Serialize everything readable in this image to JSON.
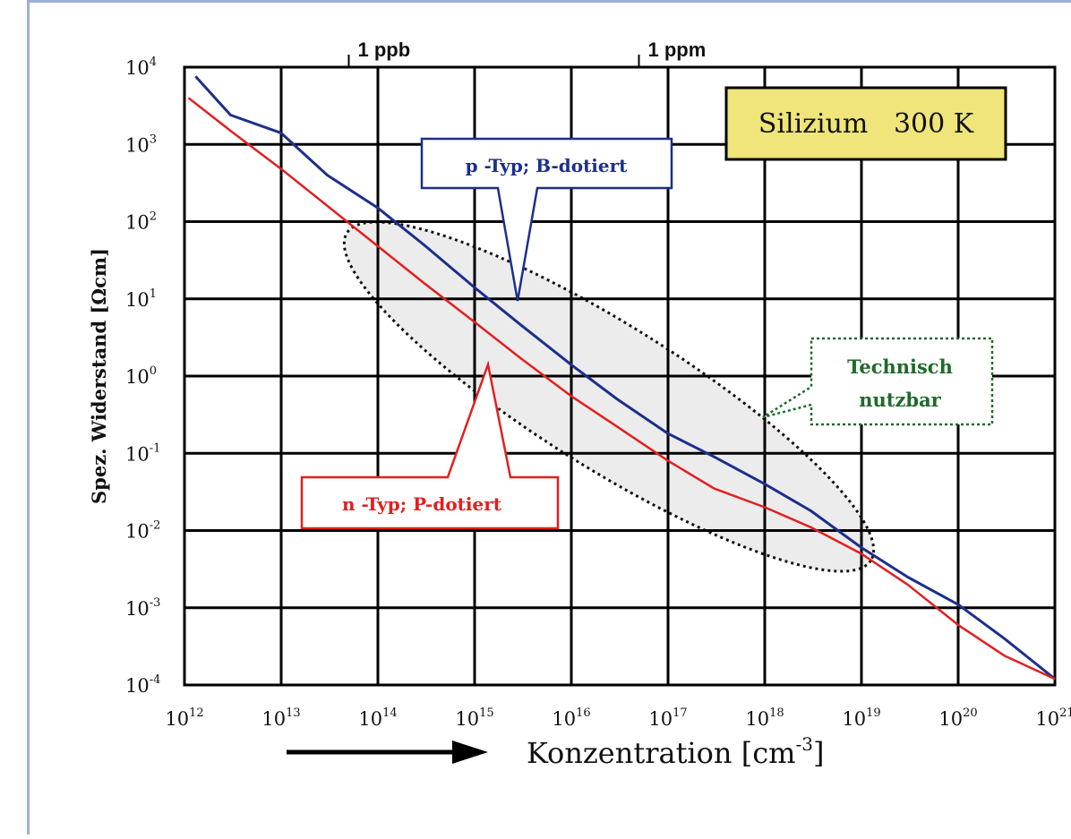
{
  "chart_data": {
    "type": "line",
    "title": "Silizium   300 K",
    "xlabel": "Konzentration [cm",
    "xlabel_exp": "-3",
    "xlabel_close": "]",
    "ylabel": "Spez. Widerstand [Ωcm]",
    "x_scale": "log",
    "y_scale": "log",
    "xlim": [
      1000000000000.0,
      1e+21
    ],
    "ylim": [
      0.0001,
      10000.0
    ],
    "grid": true,
    "x_ticks": [
      {
        "base": "10",
        "exp": "12"
      },
      {
        "base": "10",
        "exp": "13"
      },
      {
        "base": "10",
        "exp": "14"
      },
      {
        "base": "10",
        "exp": "15"
      },
      {
        "base": "10",
        "exp": "16"
      },
      {
        "base": "10",
        "exp": "17"
      },
      {
        "base": "10",
        "exp": "18"
      },
      {
        "base": "10",
        "exp": "19"
      },
      {
        "base": "10",
        "exp": "20"
      },
      {
        "base": "10",
        "exp": "21"
      }
    ],
    "y_ticks": [
      {
        "base": "10",
        "exp": "-4"
      },
      {
        "base": "10",
        "exp": "-3"
      },
      {
        "base": "10",
        "exp": "-2"
      },
      {
        "base": "10",
        "exp": "-1"
      },
      {
        "base": "10",
        "exp": "0"
      },
      {
        "base": "10",
        "exp": "1"
      },
      {
        "base": "10",
        "exp": "2"
      },
      {
        "base": "10",
        "exp": "3"
      },
      {
        "base": "10",
        "exp": "4"
      }
    ],
    "top_ticks": [
      {
        "label": "1 ppb",
        "x": 50000000000000.0
      },
      {
        "label": "1 ppm",
        "x": 5e+16
      }
    ],
    "series": [
      {
        "name": "p -Typ; B-dotiert",
        "color": "#1c2f8c",
        "points": [
          [
            1300000000000.0,
            7600
          ],
          [
            3000000000000.0,
            2400
          ],
          [
            10000000000000.0,
            1400
          ],
          [
            30000000000000.0,
            400
          ],
          [
            100000000000000.0,
            150
          ],
          [
            300000000000000.0,
            50
          ],
          [
            1000000000000000.0,
            14
          ],
          [
            3000000000000000.0,
            4.6
          ],
          [
            1e+16,
            1.4
          ],
          [
            3e+16,
            0.5
          ],
          [
            1e+17,
            0.18
          ],
          [
            3e+17,
            0.09
          ],
          [
            1e+18,
            0.04
          ],
          [
            3e+18,
            0.018
          ],
          [
            1e+19,
            0.006
          ],
          [
            3e+19,
            0.0025
          ],
          [
            1e+20,
            0.0011
          ],
          [
            3e+20,
            0.0004
          ],
          [
            1e+21,
            0.00012
          ]
        ]
      },
      {
        "name": "n -Typ; P-dotiert",
        "color": "#e21f1f",
        "points": [
          [
            1100000000000.0,
            4000
          ],
          [
            3000000000000.0,
            1500
          ],
          [
            10000000000000.0,
            480
          ],
          [
            30000000000000.0,
            160
          ],
          [
            100000000000000.0,
            48
          ],
          [
            300000000000000.0,
            16
          ],
          [
            1000000000000000.0,
            5
          ],
          [
            3000000000000000.0,
            1.7
          ],
          [
            1e+16,
            0.55
          ],
          [
            3e+16,
            0.22
          ],
          [
            1e+17,
            0.08
          ],
          [
            3e+17,
            0.035
          ],
          [
            1e+18,
            0.02
          ],
          [
            3e+18,
            0.011
          ],
          [
            1e+19,
            0.005
          ],
          [
            3e+19,
            0.002
          ],
          [
            1e+20,
            0.0006
          ],
          [
            3e+20,
            0.00024
          ],
          [
            1e+21,
            0.00012
          ]
        ]
      }
    ],
    "annotations": {
      "p_label": "p -Typ; B-dotiert",
      "n_label": "n -Typ; P-dotiert",
      "region_line1": "Technisch",
      "region_line2": "nutzbar"
    },
    "colors": {
      "title_box_fill": "#efe57a",
      "p_color": "#1c2f8c",
      "n_color": "#e21f1f",
      "region_color": "#1f6a2a"
    }
  }
}
